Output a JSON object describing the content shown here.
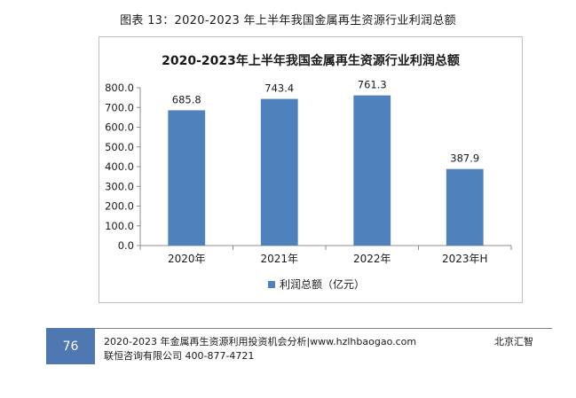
{
  "caption": "图表 13：2020-2023 年上半年我国金属再生资源行业利润总额",
  "chart_data": {
    "type": "bar",
    "title": "2020-2023年上半年我国金属再生资源行业利润总额",
    "categories": [
      "2020年",
      "2021年",
      "2022年",
      "2023年H"
    ],
    "series": [
      {
        "name": "利润总额（亿元）",
        "values": [
          685.8,
          743.4,
          761.3,
          387.9
        ]
      }
    ],
    "ylim": [
      0,
      800
    ],
    "yticks": [
      "0.0",
      "100.0",
      "200.0",
      "300.0",
      "400.0",
      "500.0",
      "600.0",
      "700.0",
      "800.0"
    ],
    "data_labels": [
      "685.8",
      "743.4",
      "761.3",
      "387.9"
    ],
    "legend_position": "bottom",
    "grid": false,
    "bar_color": "#4f81bd"
  },
  "footer": {
    "page_number": "76",
    "line1": "2020-2023 年金属再生资源利用投资机会分析|www.hzlhbaogao.com",
    "line2": "联恒咨询有限公司 400-877-4721",
    "right_text": "北京汇智",
    "accent_color": "#4f77b2"
  }
}
